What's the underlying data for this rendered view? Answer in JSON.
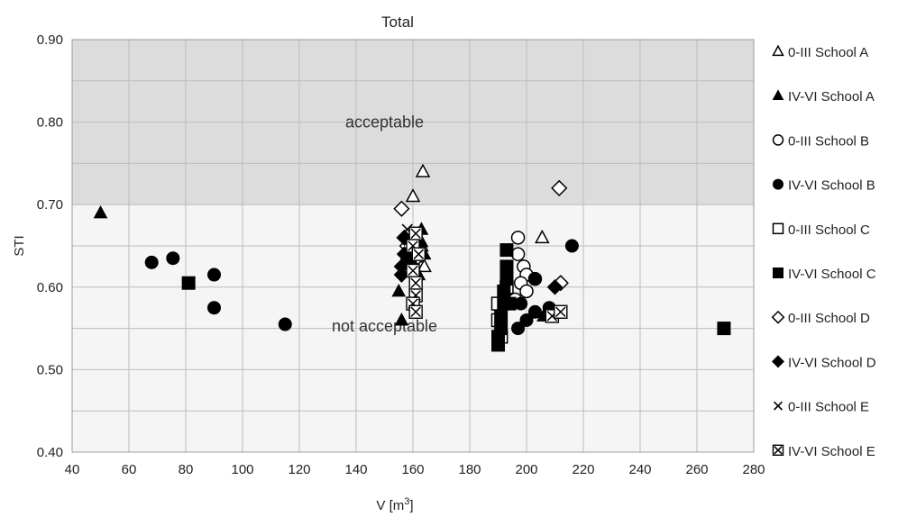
{
  "chart_data": {
    "type": "scatter",
    "title": "Total",
    "xlabel": "V [m",
    "xlabel_sup": "3",
    "xlabel_end": "]",
    "ylabel": "STI",
    "xlim": [
      40,
      280
    ],
    "ylim": [
      0.4,
      0.9
    ],
    "x_ticks": [
      40,
      60,
      80,
      100,
      120,
      140,
      160,
      180,
      200,
      220,
      240,
      260,
      280
    ],
    "x_tick_labels": [
      "40",
      "60",
      "80",
      "100",
      "120",
      "140",
      "160",
      "180",
      "200",
      "220",
      "240",
      "260",
      "280"
    ],
    "y_ticks": [
      0.4,
      0.5,
      0.6,
      0.7,
      0.8,
      0.9
    ],
    "y_tick_labels": [
      "0.40",
      "0.50",
      "0.60",
      "0.70",
      "0.80",
      "0.90"
    ],
    "grid": true,
    "legend_position": "right",
    "threshold": 0.7,
    "zones": {
      "above": "acceptable",
      "below": "not acceptable"
    },
    "zone_label_positions": {
      "above": [
        150,
        0.8
      ],
      "below": [
        150,
        0.553
      ]
    },
    "colors": {
      "acceptable_bg": "#dcdcdc",
      "not_acceptable_bg": "#f5f5f5",
      "grid": "#bcbcbc",
      "marker": "#000000"
    },
    "series": [
      {
        "name": "0-III School A",
        "marker": "triangle-open",
        "points": [
          [
            163.5,
            0.74
          ],
          [
            160,
            0.71
          ],
          [
            205.5,
            0.66
          ],
          [
            163,
            0.65
          ],
          [
            162,
            0.63
          ],
          [
            164,
            0.625
          ]
        ]
      },
      {
        "name": "IV-VI School A",
        "marker": "triangle-filled",
        "points": [
          [
            50,
            0.69
          ],
          [
            155,
            0.595
          ],
          [
            156,
            0.56
          ],
          [
            163,
            0.67
          ],
          [
            163,
            0.655
          ],
          [
            164,
            0.64
          ],
          [
            162,
            0.615
          ],
          [
            206,
            0.565
          ],
          [
            160,
            0.63
          ]
        ]
      },
      {
        "name": "0-III School B",
        "marker": "circle-open",
        "points": [
          [
            197,
            0.66
          ],
          [
            197,
            0.64
          ],
          [
            199,
            0.625
          ],
          [
            200,
            0.615
          ],
          [
            198,
            0.605
          ],
          [
            200,
            0.595
          ],
          [
            196,
            0.585
          ],
          [
            203,
            0.61
          ]
        ]
      },
      {
        "name": "IV-VI School B",
        "marker": "circle-filled",
        "points": [
          [
            68,
            0.63
          ],
          [
            75.5,
            0.635
          ],
          [
            90,
            0.615
          ],
          [
            90,
            0.575
          ],
          [
            115,
            0.555
          ],
          [
            216,
            0.65
          ],
          [
            203,
            0.61
          ],
          [
            198,
            0.58
          ],
          [
            197,
            0.55
          ],
          [
            200,
            0.56
          ],
          [
            203,
            0.57
          ],
          [
            208,
            0.575
          ],
          [
            193,
            0.58
          ],
          [
            160,
            0.62
          ],
          [
            158,
            0.635
          ]
        ]
      },
      {
        "name": "0-III School C",
        "marker": "square-open",
        "points": [
          [
            190,
            0.58
          ],
          [
            190,
            0.56
          ],
          [
            191,
            0.54
          ],
          [
            193,
            0.6
          ]
        ]
      },
      {
        "name": "IV-VI School C",
        "marker": "square-filled",
        "points": [
          [
            81,
            0.605
          ],
          [
            269.5,
            0.55
          ],
          [
            193,
            0.645
          ],
          [
            193,
            0.625
          ],
          [
            193,
            0.61
          ],
          [
            192,
            0.595
          ],
          [
            192,
            0.58
          ],
          [
            191,
            0.565
          ],
          [
            191,
            0.55
          ],
          [
            190,
            0.54
          ],
          [
            190,
            0.53
          ],
          [
            194,
            0.58
          ]
        ]
      },
      {
        "name": "0-III School D",
        "marker": "diamond-open",
        "points": [
          [
            156,
            0.695
          ],
          [
            211.5,
            0.72
          ],
          [
            158,
            0.65
          ],
          [
            212,
            0.605
          ],
          [
            157,
            0.66
          ]
        ]
      },
      {
        "name": "IV-VI School D",
        "marker": "diamond-filled",
        "points": [
          [
            157,
            0.66
          ],
          [
            157,
            0.64
          ],
          [
            156,
            0.625
          ],
          [
            156,
            0.615
          ],
          [
            210,
            0.6
          ],
          [
            158,
            0.63
          ]
        ]
      },
      {
        "name": "0-III School E",
        "marker": "x",
        "points": [
          [
            158,
            0.67
          ],
          [
            162,
            0.645
          ],
          [
            161,
            0.625
          ]
        ]
      },
      {
        "name": "IV-VI School E",
        "marker": "x-square",
        "points": [
          [
            161,
            0.665
          ],
          [
            160,
            0.65
          ],
          [
            162,
            0.64
          ],
          [
            160,
            0.62
          ],
          [
            161,
            0.605
          ],
          [
            161,
            0.59
          ],
          [
            160,
            0.58
          ],
          [
            161,
            0.57
          ],
          [
            209,
            0.565
          ],
          [
            212,
            0.57
          ]
        ]
      }
    ]
  }
}
